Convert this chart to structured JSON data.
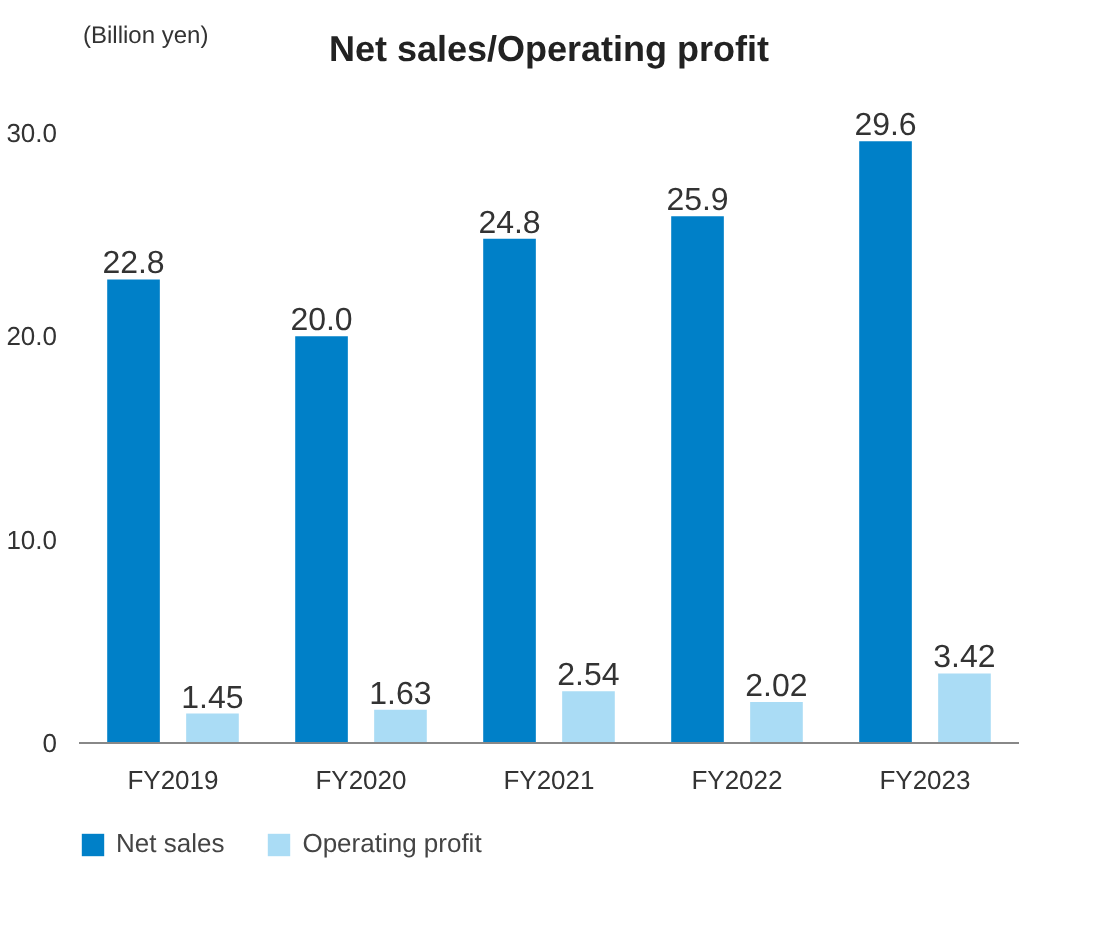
{
  "chart_data": {
    "type": "bar",
    "title": "Net sales/Operating profit",
    "ylabel": "(Billion yen)",
    "categories": [
      "FY2019",
      "FY2020",
      "FY2021",
      "FY2022",
      "FY2023"
    ],
    "series": [
      {
        "name": "Net sales",
        "color": "#0080c8",
        "values": [
          22.8,
          20.0,
          24.8,
          25.9,
          29.6
        ],
        "value_labels": [
          "22.8",
          "20.0",
          "24.8",
          "25.9",
          "29.6"
        ]
      },
      {
        "name": "Operating profit",
        "color": "#aadcf5",
        "values": [
          1.45,
          1.63,
          2.54,
          2.02,
          3.42
        ],
        "value_labels": [
          "1.45",
          "1.63",
          "2.54",
          "2.02",
          "3.42"
        ]
      }
    ],
    "ylim": [
      0,
      30
    ],
    "yticks": [
      0,
      {
        "value": 10,
        "label": "10.0"
      },
      {
        "value": 20,
        "label": "20.0"
      },
      {
        "value": 30,
        "label": "30.0"
      }
    ],
    "grid": false,
    "legend": "bottom left"
  }
}
